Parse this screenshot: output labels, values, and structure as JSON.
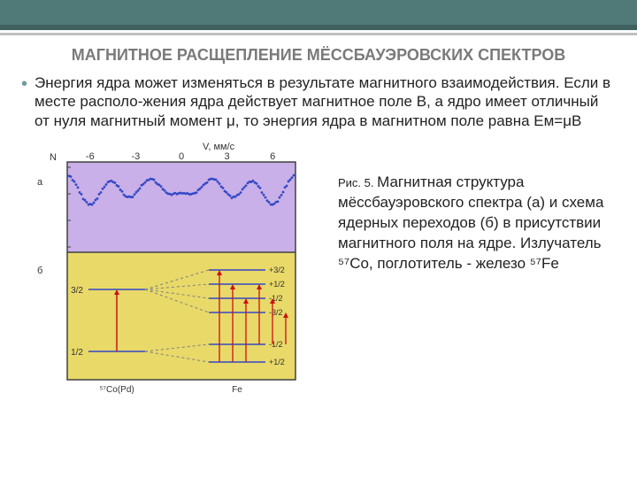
{
  "title": "МАГНИТНОЕ РАСЩЕПЛЕНИЕ МЁССБАУЭРОВСКИХ СПЕКТРОВ",
  "bullet": "Энергия ядра может изменяться в результате магнитного взаимодействия. Если в месте располо-жения ядра действует магнитное поле В, а ядро имеет отличный от нуля магнитный момент μ, то энергия ядра в магнитном поле равна Eм=μB",
  "caption": "Магнитная структура мёссбауэровского спектра (а) и схема ядерных переходов (б) в присутствии магнитного поля на ядре. Излучатель ⁵⁷Co, поглотитель - железо ⁵⁷Fe",
  "fig_label": "Рис. 5. ",
  "figure": {
    "border": "#404040",
    "panel_a_bg": "#c9b0e8",
    "panel_b_bg": "#e8d969",
    "level_color": "#3247c6",
    "dash_color": "#808080",
    "arrow_color": "#cc1111",
    "spectrum_color": "#3247c6",
    "x_axis": {
      "label": "V, мм/с",
      "ticks": [
        -6,
        -3,
        0,
        3,
        6
      ]
    },
    "y_left": "N",
    "panel_a_label": "а",
    "panel_b_label": "б",
    "spin_left": [
      "3/2",
      "1/2"
    ],
    "spin_right_upper": [
      "+3/2",
      "+1/2",
      "-1/2",
      "-3/2"
    ],
    "spin_right_lower": [
      "-1/2",
      "+1/2"
    ],
    "bottom_labels": [
      "⁵⁷Co(Pd)",
      "Fe"
    ],
    "peak_positions": [
      -6,
      -3.4,
      -0.8,
      0.8,
      3.4,
      6
    ],
    "peak_depths": [
      38,
      30,
      24,
      24,
      30,
      38
    ]
  }
}
